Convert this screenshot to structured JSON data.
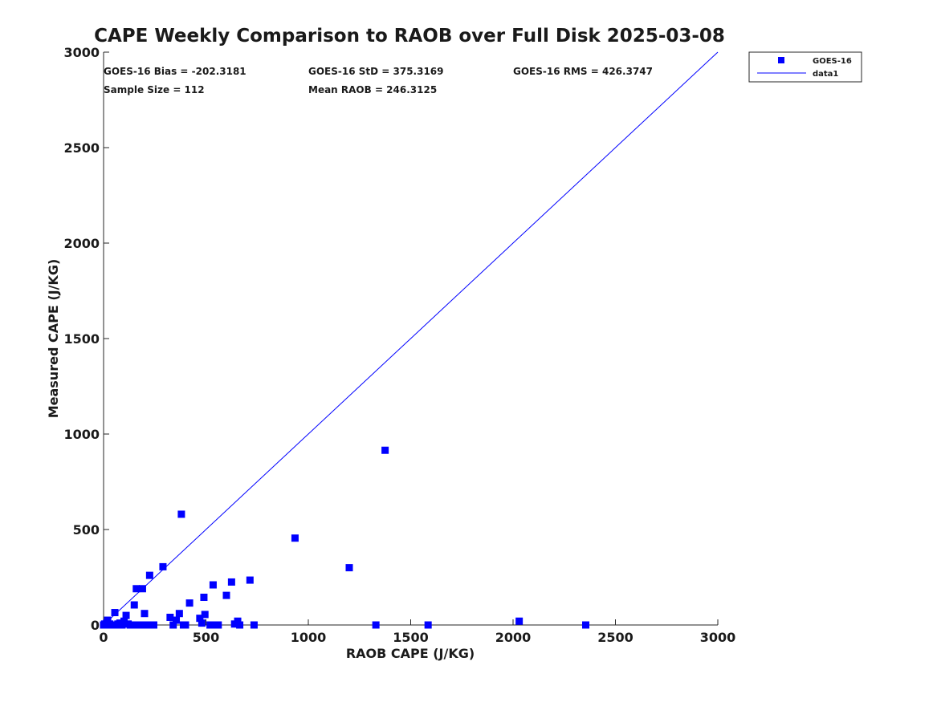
{
  "chart_data": {
    "type": "scatter",
    "title": "CAPE Weekly Comparison to RAOB over Full Disk 2025-03-08",
    "xlabel": "RAOB CAPE (J/KG)",
    "ylabel": "Measured CAPE (J/KG)",
    "xlim": [
      0,
      3000
    ],
    "ylim": [
      0,
      3000
    ],
    "x_ticks": [
      0,
      500,
      1000,
      1500,
      2000,
      2500,
      3000
    ],
    "y_ticks": [
      0,
      500,
      1000,
      1500,
      2000,
      2500,
      3000
    ],
    "grid": false,
    "legend_placement": "top-right",
    "colors": {
      "series": "#0000ff",
      "axis": "#262626"
    },
    "stats": [
      "GOES-16 Bias = -202.3181",
      "GOES-16 StD = 375.3169",
      "GOES-16 RMS = 426.3747",
      "Sample Size = 112",
      "Mean RAOB = 246.3125"
    ],
    "series": [
      {
        "name": "GOES-16",
        "marker": "square",
        "x": [
          0,
          5,
          10,
          15,
          20,
          25,
          30,
          40,
          50,
          55,
          60,
          70,
          80,
          90,
          100,
          110,
          120,
          130,
          140,
          150,
          155,
          160,
          170,
          180,
          190,
          195,
          200,
          210,
          225,
          245,
          290,
          325,
          340,
          355,
          370,
          380,
          390,
          400,
          420,
          470,
          480,
          490,
          495,
          520,
          535,
          545,
          560,
          600,
          625,
          640,
          655,
          665,
          715,
          735,
          935,
          1200,
          1330,
          1375,
          1585,
          2030,
          2355
        ],
        "y": [
          0,
          5,
          0,
          10,
          25,
          0,
          5,
          0,
          0,
          65,
          0,
          5,
          10,
          0,
          20,
          50,
          5,
          0,
          0,
          105,
          0,
          190,
          0,
          0,
          190,
          0,
          60,
          0,
          260,
          0,
          305,
          40,
          0,
          25,
          60,
          580,
          0,
          0,
          115,
          35,
          10,
          145,
          55,
          0,
          210,
          0,
          0,
          155,
          225,
          5,
          20,
          0,
          235,
          0,
          455,
          300,
          0,
          915,
          0,
          20,
          0
        ]
      },
      {
        "name": "data1",
        "type": "line",
        "x": [
          0,
          3000
        ],
        "y": [
          0,
          3000
        ]
      }
    ]
  }
}
